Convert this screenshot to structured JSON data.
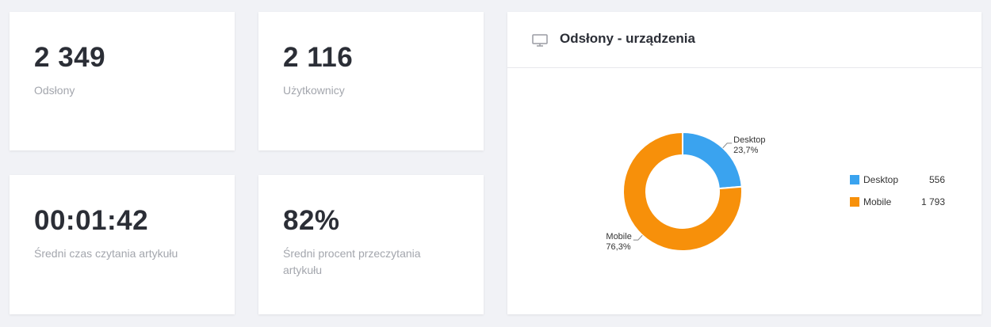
{
  "stats": [
    {
      "value": "2 349",
      "label": "Odsłony"
    },
    {
      "value": "2 116",
      "label": "Użytkownicy"
    },
    {
      "value": "00:01:42",
      "label": "Średni czas czytania artykułu"
    },
    {
      "value": "82%",
      "label": "Średni procent przeczytania artykułu"
    }
  ],
  "chart_card": {
    "title": "Odsłony - urządzenia",
    "icon": "monitor-icon"
  },
  "chart_data": {
    "type": "pie",
    "donut": true,
    "categories": [
      "Desktop",
      "Mobile"
    ],
    "values": [
      556,
      1793
    ],
    "percent_labels": [
      "23,7%",
      "76,3%"
    ],
    "value_labels": [
      "556",
      "1 793"
    ],
    "colors": [
      "#3aa3ef",
      "#f7900a"
    ],
    "legend": "right"
  }
}
